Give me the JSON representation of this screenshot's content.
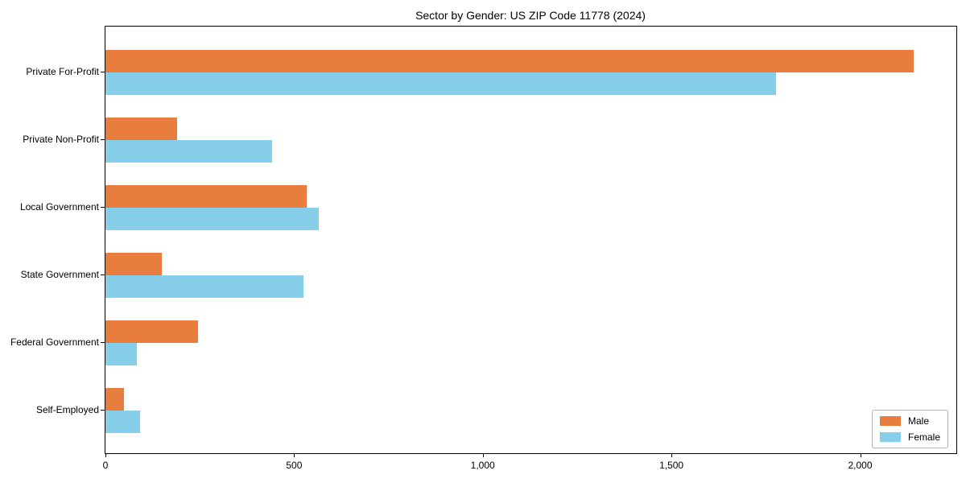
{
  "chart_data": {
    "type": "bar",
    "orientation": "horizontal",
    "title": "Sector by Gender: US ZIP Code 11778 (2024)",
    "categories": [
      "Private For-Profit",
      "Private Non-Profit",
      "Local Government",
      "State Government",
      "Federal Government",
      "Self-Employed"
    ],
    "series": [
      {
        "name": "Male",
        "color": "#e87d3e",
        "values": [
          2142,
          189,
          533,
          150,
          246,
          48
        ]
      },
      {
        "name": "Female",
        "color": "#87ceeb",
        "values": [
          1778,
          441,
          566,
          524,
          84,
          92
        ]
      }
    ],
    "xlabel": "",
    "ylabel": "",
    "xlim": [
      0,
      2255
    ],
    "x_ticks": [
      {
        "value": 0,
        "label": "0"
      },
      {
        "value": 500,
        "label": "500"
      },
      {
        "value": 1000,
        "label": "1,000"
      },
      {
        "value": 1500,
        "label": "1,500"
      },
      {
        "value": 2000,
        "label": "2,000"
      }
    ],
    "grid": false,
    "legend": {
      "position": "lower right"
    }
  },
  "colors": {
    "background": "#ffffff",
    "axis": "#000000",
    "text": "#000000",
    "legend_border": "#b3b3b3"
  }
}
